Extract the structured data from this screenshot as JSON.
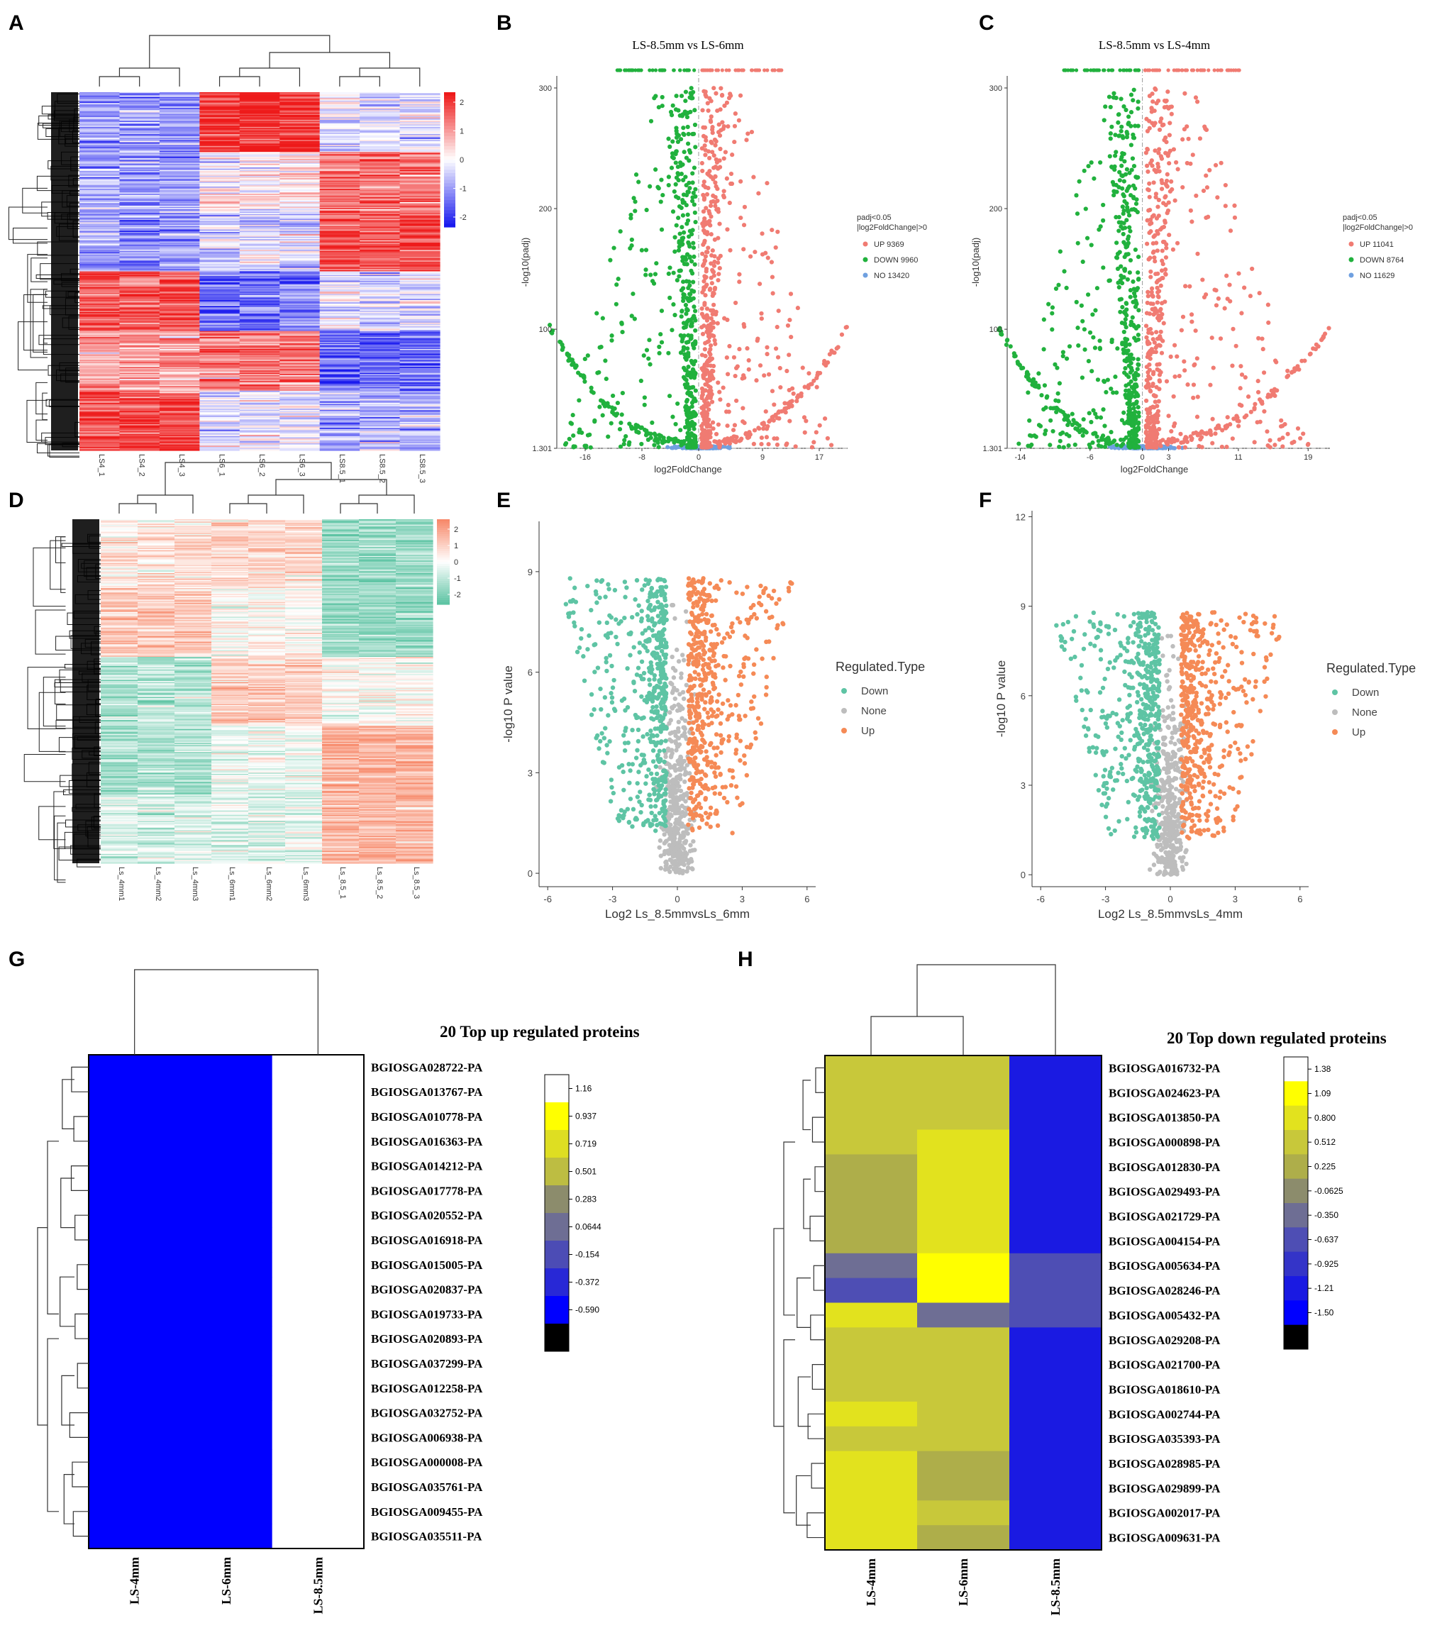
{
  "panel_labels": [
    "A",
    "B",
    "C",
    "D",
    "E",
    "F",
    "G",
    "H"
  ],
  "chart_data": [
    {
      "panel": "A",
      "type": "heatmap",
      "columns": [
        "LS4_1",
        "LS4_2",
        "LS4_3",
        "LS6_1",
        "LS6_2",
        "LS6_3",
        "LS8.5_1",
        "LS8.5_2",
        "LS8.5_3"
      ],
      "color_scale": {
        "ticks": [
          "2",
          "1",
          "0",
          "-1",
          "-2"
        ],
        "low": "#1a1aee",
        "mid": "#ffffff",
        "high": "#ee1a1a"
      },
      "blocks": [
        {
          "values": [
            -0.9,
            -0.9,
            -0.9,
            1.8,
            1.8,
            1.8,
            -0.2,
            -0.2,
            -0.2
          ]
        },
        {
          "values": [
            -0.8,
            -0.8,
            -0.8,
            0.1,
            0.1,
            0.1,
            1.2,
            1.2,
            1.2
          ]
        },
        {
          "values": [
            -0.9,
            -0.9,
            -0.9,
            -0.3,
            -0.3,
            -0.3,
            1.5,
            1.5,
            1.5
          ]
        },
        {
          "values": [
            1.4,
            1.4,
            1.4,
            -1.2,
            -1.2,
            -1.2,
            -0.3,
            -0.3,
            -0.3
          ]
        },
        {
          "values": [
            0.8,
            0.8,
            0.8,
            1.2,
            1.2,
            1.2,
            -1.3,
            -1.3,
            -1.3
          ]
        },
        {
          "values": [
            1.6,
            1.6,
            1.6,
            -0.3,
            -0.3,
            -0.3,
            -0.7,
            -0.7,
            -0.7
          ]
        }
      ]
    },
    {
      "panel": "B",
      "type": "scatter",
      "title": "LS-8.5mm vs LS-6mm",
      "xlabel": "log2FoldChange",
      "ylabel": "-log10(padj)",
      "xticks": [
        "-16",
        "-8",
        "0",
        "9",
        "17"
      ],
      "yticks": [
        "300",
        "200",
        "100",
        "1.301"
      ],
      "xlim": [
        -20,
        21
      ],
      "ylim": [
        1.301,
        310
      ],
      "legend_title": [
        "padj<0.05",
        "|log2FoldChange|>0"
      ],
      "legend": [
        {
          "label": "UP 9369",
          "color": "#f07b72"
        },
        {
          "label": "DOWN 9960",
          "color": "#21b13d"
        },
        {
          "label": "NO 13420",
          "color": "#6fa0e0"
        }
      ]
    },
    {
      "panel": "C",
      "type": "scatter",
      "title": "LS-8.5mm vs LS-4mm",
      "xlabel": "log2FoldChange",
      "ylabel": "-log10(padj)",
      "xticks": [
        "-14",
        "-6",
        "0",
        "3",
        "11",
        "19"
      ],
      "yticks": [
        "300",
        "200",
        "100",
        "1.301"
      ],
      "xlim": [
        -15.5,
        21.5
      ],
      "ylim": [
        1.301,
        310
      ],
      "legend_title": [
        "padj<0.05",
        "|log2FoldChange|>0"
      ],
      "legend": [
        {
          "label": "UP 11041",
          "color": "#f07b72"
        },
        {
          "label": "DOWN 8764",
          "color": "#21b13d"
        },
        {
          "label": "NO 11629",
          "color": "#6fa0e0"
        }
      ]
    },
    {
      "panel": "D",
      "type": "heatmap",
      "columns": [
        "Ls_4mm1",
        "Ls_4mm2",
        "Ls_4mm3",
        "Ls_6mm1",
        "Ls_6mm2",
        "Ls_6mm3",
        "Ls_8.5_1",
        "Ls_8.5_2",
        "Ls_8.5_3"
      ],
      "color_scale": {
        "ticks": [
          "2",
          "1",
          "0",
          "-1",
          "-2"
        ],
        "low": "#5ec4a4",
        "mid": "#ffffff",
        "high": "#f7896a"
      },
      "blocks": [
        {
          "values": [
            0.4,
            0.4,
            0.4,
            0.7,
            0.7,
            0.7,
            -1.3,
            -1.3,
            -1.3
          ]
        },
        {
          "values": [
            0.9,
            0.9,
            0.9,
            0.1,
            0.1,
            0.1,
            -1.2,
            -1.2,
            -1.2
          ]
        },
        {
          "values": [
            -0.9,
            -0.9,
            -0.9,
            0.8,
            0.8,
            0.8,
            0.0,
            0.0,
            0.0
          ]
        },
        {
          "values": [
            -1.0,
            -1.0,
            -1.0,
            -0.2,
            -0.2,
            -0.2,
            1.3,
            1.3,
            1.3
          ]
        },
        {
          "values": [
            -0.5,
            -0.5,
            -0.5,
            -0.4,
            -0.4,
            -0.4,
            1.2,
            1.2,
            1.2
          ]
        }
      ]
    },
    {
      "panel": "E",
      "type": "scatter",
      "xlabel": "Log2 Ls_8.5mmvsLs_6mm",
      "ylabel": "-log10 P value",
      "xticks": [
        "-6",
        "-3",
        "0",
        "3",
        "6"
      ],
      "yticks": [
        "0",
        "3",
        "6",
        "9"
      ],
      "xlim": [
        -6.4,
        6.4
      ],
      "ylim": [
        -0.4,
        10.5
      ],
      "legend_title": "Regulated.Type",
      "legend": [
        {
          "label": "Down",
          "color": "#5ec4a4"
        },
        {
          "label": "None",
          "color": "#bdbdbd"
        },
        {
          "label": "Up",
          "color": "#f58a56"
        }
      ]
    },
    {
      "panel": "F",
      "type": "scatter",
      "xlabel": "Log2 Ls_8.5mmvsLs_4mm",
      "ylabel": "-log10 P value",
      "xticks": [
        "-6",
        "-3",
        "0",
        "3",
        "6"
      ],
      "yticks": [
        "0",
        "3",
        "6",
        "9",
        "12"
      ],
      "xlim": [
        -6.4,
        6.4
      ],
      "ylim": [
        -0.4,
        12.2
      ],
      "legend_title": "Regulated.Type",
      "legend": [
        {
          "label": "Down",
          "color": "#5ec4a4"
        },
        {
          "label": "None",
          "color": "#bdbdbd"
        },
        {
          "label": "Up",
          "color": "#f58a56"
        }
      ]
    },
    {
      "panel": "G",
      "type": "heatmap",
      "title": "20 Top up regulated proteins",
      "columns": [
        "LS-4mm",
        "LS-6mm",
        "LS-8.5mm"
      ],
      "rows": [
        "BGIOSGA028722-PA",
        "BGIOSGA013767-PA",
        "BGIOSGA010778-PA",
        "BGIOSGA016363-PA",
        "BGIOSGA014212-PA",
        "BGIOSGA017778-PA",
        "BGIOSGA020552-PA",
        "BGIOSGA016918-PA",
        "BGIOSGA015005-PA",
        "BGIOSGA020837-PA",
        "BGIOSGA019733-PA",
        "BGIOSGA020893-PA",
        "BGIOSGA037299-PA",
        "BGIOSGA012258-PA",
        "BGIOSGA032752-PA",
        "BGIOSGA006938-PA",
        "BGIOSGA000008-PA",
        "BGIOSGA035761-PA",
        "BGIOSGA009455-PA",
        "BGIOSGA035511-PA"
      ],
      "values": [
        [
          -0.577,
          -0.577,
          1.155
        ],
        [
          -0.577,
          -0.577,
          1.155
        ],
        [
          -0.577,
          -0.577,
          1.155
        ],
        [
          -0.577,
          -0.577,
          1.155
        ],
        [
          -0.577,
          -0.577,
          1.155
        ],
        [
          -0.577,
          -0.577,
          1.155
        ],
        [
          -0.577,
          -0.577,
          1.155
        ],
        [
          -0.577,
          -0.577,
          1.155
        ],
        [
          -0.577,
          -0.577,
          1.155
        ],
        [
          -0.577,
          -0.577,
          1.155
        ],
        [
          -0.577,
          -0.577,
          1.155
        ],
        [
          -0.577,
          -0.577,
          1.155
        ],
        [
          -0.577,
          -0.577,
          1.155
        ],
        [
          -0.577,
          -0.577,
          1.155
        ],
        [
          -0.577,
          -0.577,
          1.155
        ],
        [
          -0.577,
          -0.577,
          1.155
        ],
        [
          -0.577,
          -0.577,
          1.155
        ],
        [
          -0.577,
          -0.577,
          1.155
        ],
        [
          -0.577,
          -0.577,
          1.155
        ],
        [
          -0.577,
          -0.577,
          1.155
        ]
      ],
      "colorbar": {
        "labels": [
          "1.16",
          "0.937",
          "0.719",
          "0.501",
          "0.283",
          "0.0644",
          "-0.154",
          "-0.372",
          "-0.590"
        ],
        "colors": [
          "#ffffff",
          "#ffff00",
          "#dede22",
          "#bdbd42",
          "#8c8c6c",
          "#6e6e94",
          "#4c4cb5",
          "#2828d6",
          "#0000ff",
          "#000000"
        ]
      }
    },
    {
      "panel": "H",
      "type": "heatmap",
      "title": "20 Top down regulated proteins",
      "columns": [
        "LS-4mm",
        "LS-6mm",
        "LS-8.5mm"
      ],
      "rows": [
        "BGIOSGA016732-PA",
        "BGIOSGA024623-PA",
        "BGIOSGA013850-PA",
        "BGIOSGA000898-PA",
        "BGIOSGA012830-PA",
        "BGIOSGA029493-PA",
        "BGIOSGA021729-PA",
        "BGIOSGA004154-PA",
        "BGIOSGA005634-PA",
        "BGIOSGA028246-PA",
        "BGIOSGA005432-PA",
        "BGIOSGA029208-PA",
        "BGIOSGA021700-PA",
        "BGIOSGA018610-PA",
        "BGIOSGA002744-PA",
        "BGIOSGA035393-PA",
        "BGIOSGA028985-PA",
        "BGIOSGA029899-PA",
        "BGIOSGA002017-PA",
        "BGIOSGA009631-PA"
      ],
      "values": [
        [
          0.51,
          0.51,
          -1.1
        ],
        [
          0.51,
          0.51,
          -1.1
        ],
        [
          0.51,
          0.51,
          -1.1
        ],
        [
          0.51,
          0.8,
          -1.1
        ],
        [
          0.23,
          0.8,
          -1.1
        ],
        [
          0.23,
          0.8,
          -1.1
        ],
        [
          0.23,
          0.8,
          -1.1
        ],
        [
          0.23,
          0.8,
          -1.1
        ],
        [
          -0.35,
          1.09,
          -0.64
        ],
        [
          -0.64,
          1.09,
          -0.64
        ],
        [
          0.8,
          -0.35,
          -0.64
        ],
        [
          0.51,
          0.51,
          -1.1
        ],
        [
          0.51,
          0.51,
          -1.1
        ],
        [
          0.51,
          0.51,
          -1.1
        ],
        [
          0.8,
          0.51,
          -1.1
        ],
        [
          0.51,
          0.51,
          -1.1
        ],
        [
          0.8,
          0.23,
          -1.1
        ],
        [
          0.8,
          0.23,
          -1.1
        ],
        [
          0.8,
          0.51,
          -1.1
        ],
        [
          0.8,
          0.23,
          -1.1
        ]
      ],
      "colorbar": {
        "labels": [
          "1.38",
          "1.09",
          "0.800",
          "0.512",
          "0.225",
          "-0.0625",
          "-0.350",
          "-0.637",
          "-0.925",
          "-1.21",
          "-1.50"
        ],
        "colors": [
          "#ffffff",
          "#ffff00",
          "#e2e21e",
          "#c8c83a",
          "#aeae4a",
          "#8c8c6c",
          "#6e6e94",
          "#4e4eb4",
          "#3434c8",
          "#1a1ae2",
          "#0000ff",
          "#000000"
        ]
      }
    }
  ]
}
